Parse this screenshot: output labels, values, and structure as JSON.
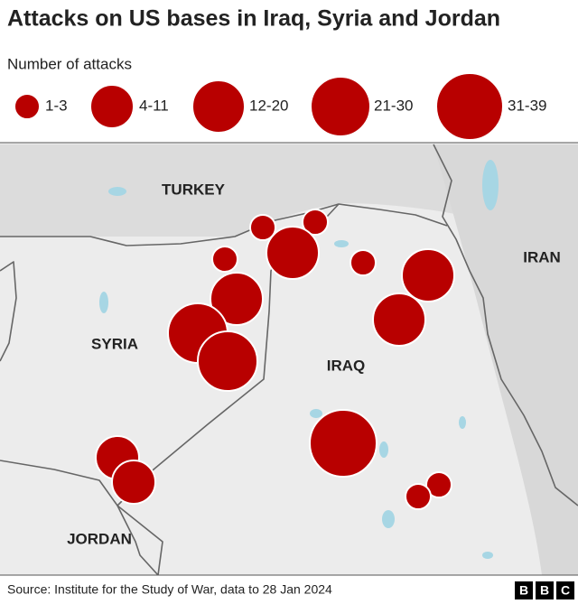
{
  "title": "Attacks on US bases in Iraq, Syria and Jordan",
  "legend": {
    "title": "Number of attacks",
    "classes": [
      "1-3",
      "4-11",
      "12-20",
      "21-30",
      "31-39"
    ]
  },
  "countries": [
    "TURKEY",
    "SYRIA",
    "IRAQ",
    "IRAN",
    "JORDAN"
  ],
  "bases": [
    {
      "attacks": "1-3"
    },
    {
      "attacks": "1-3"
    },
    {
      "attacks": "12-20"
    },
    {
      "attacks": "1-3"
    },
    {
      "attacks": "1-3"
    },
    {
      "attacks": "12-20"
    },
    {
      "attacks": "12-20"
    },
    {
      "attacks": "12-20"
    },
    {
      "attacks": "21-30"
    },
    {
      "attacks": "21-30"
    },
    {
      "attacks": "31-39"
    },
    {
      "attacks": "4-11"
    },
    {
      "attacks": "4-11"
    },
    {
      "attacks": "1-3"
    },
    {
      "attacks": "1-3"
    }
  ],
  "source": "Source: Institute for the Study of War, data to 28 Jan 2024",
  "logo": [
    "B",
    "B",
    "C"
  ]
}
